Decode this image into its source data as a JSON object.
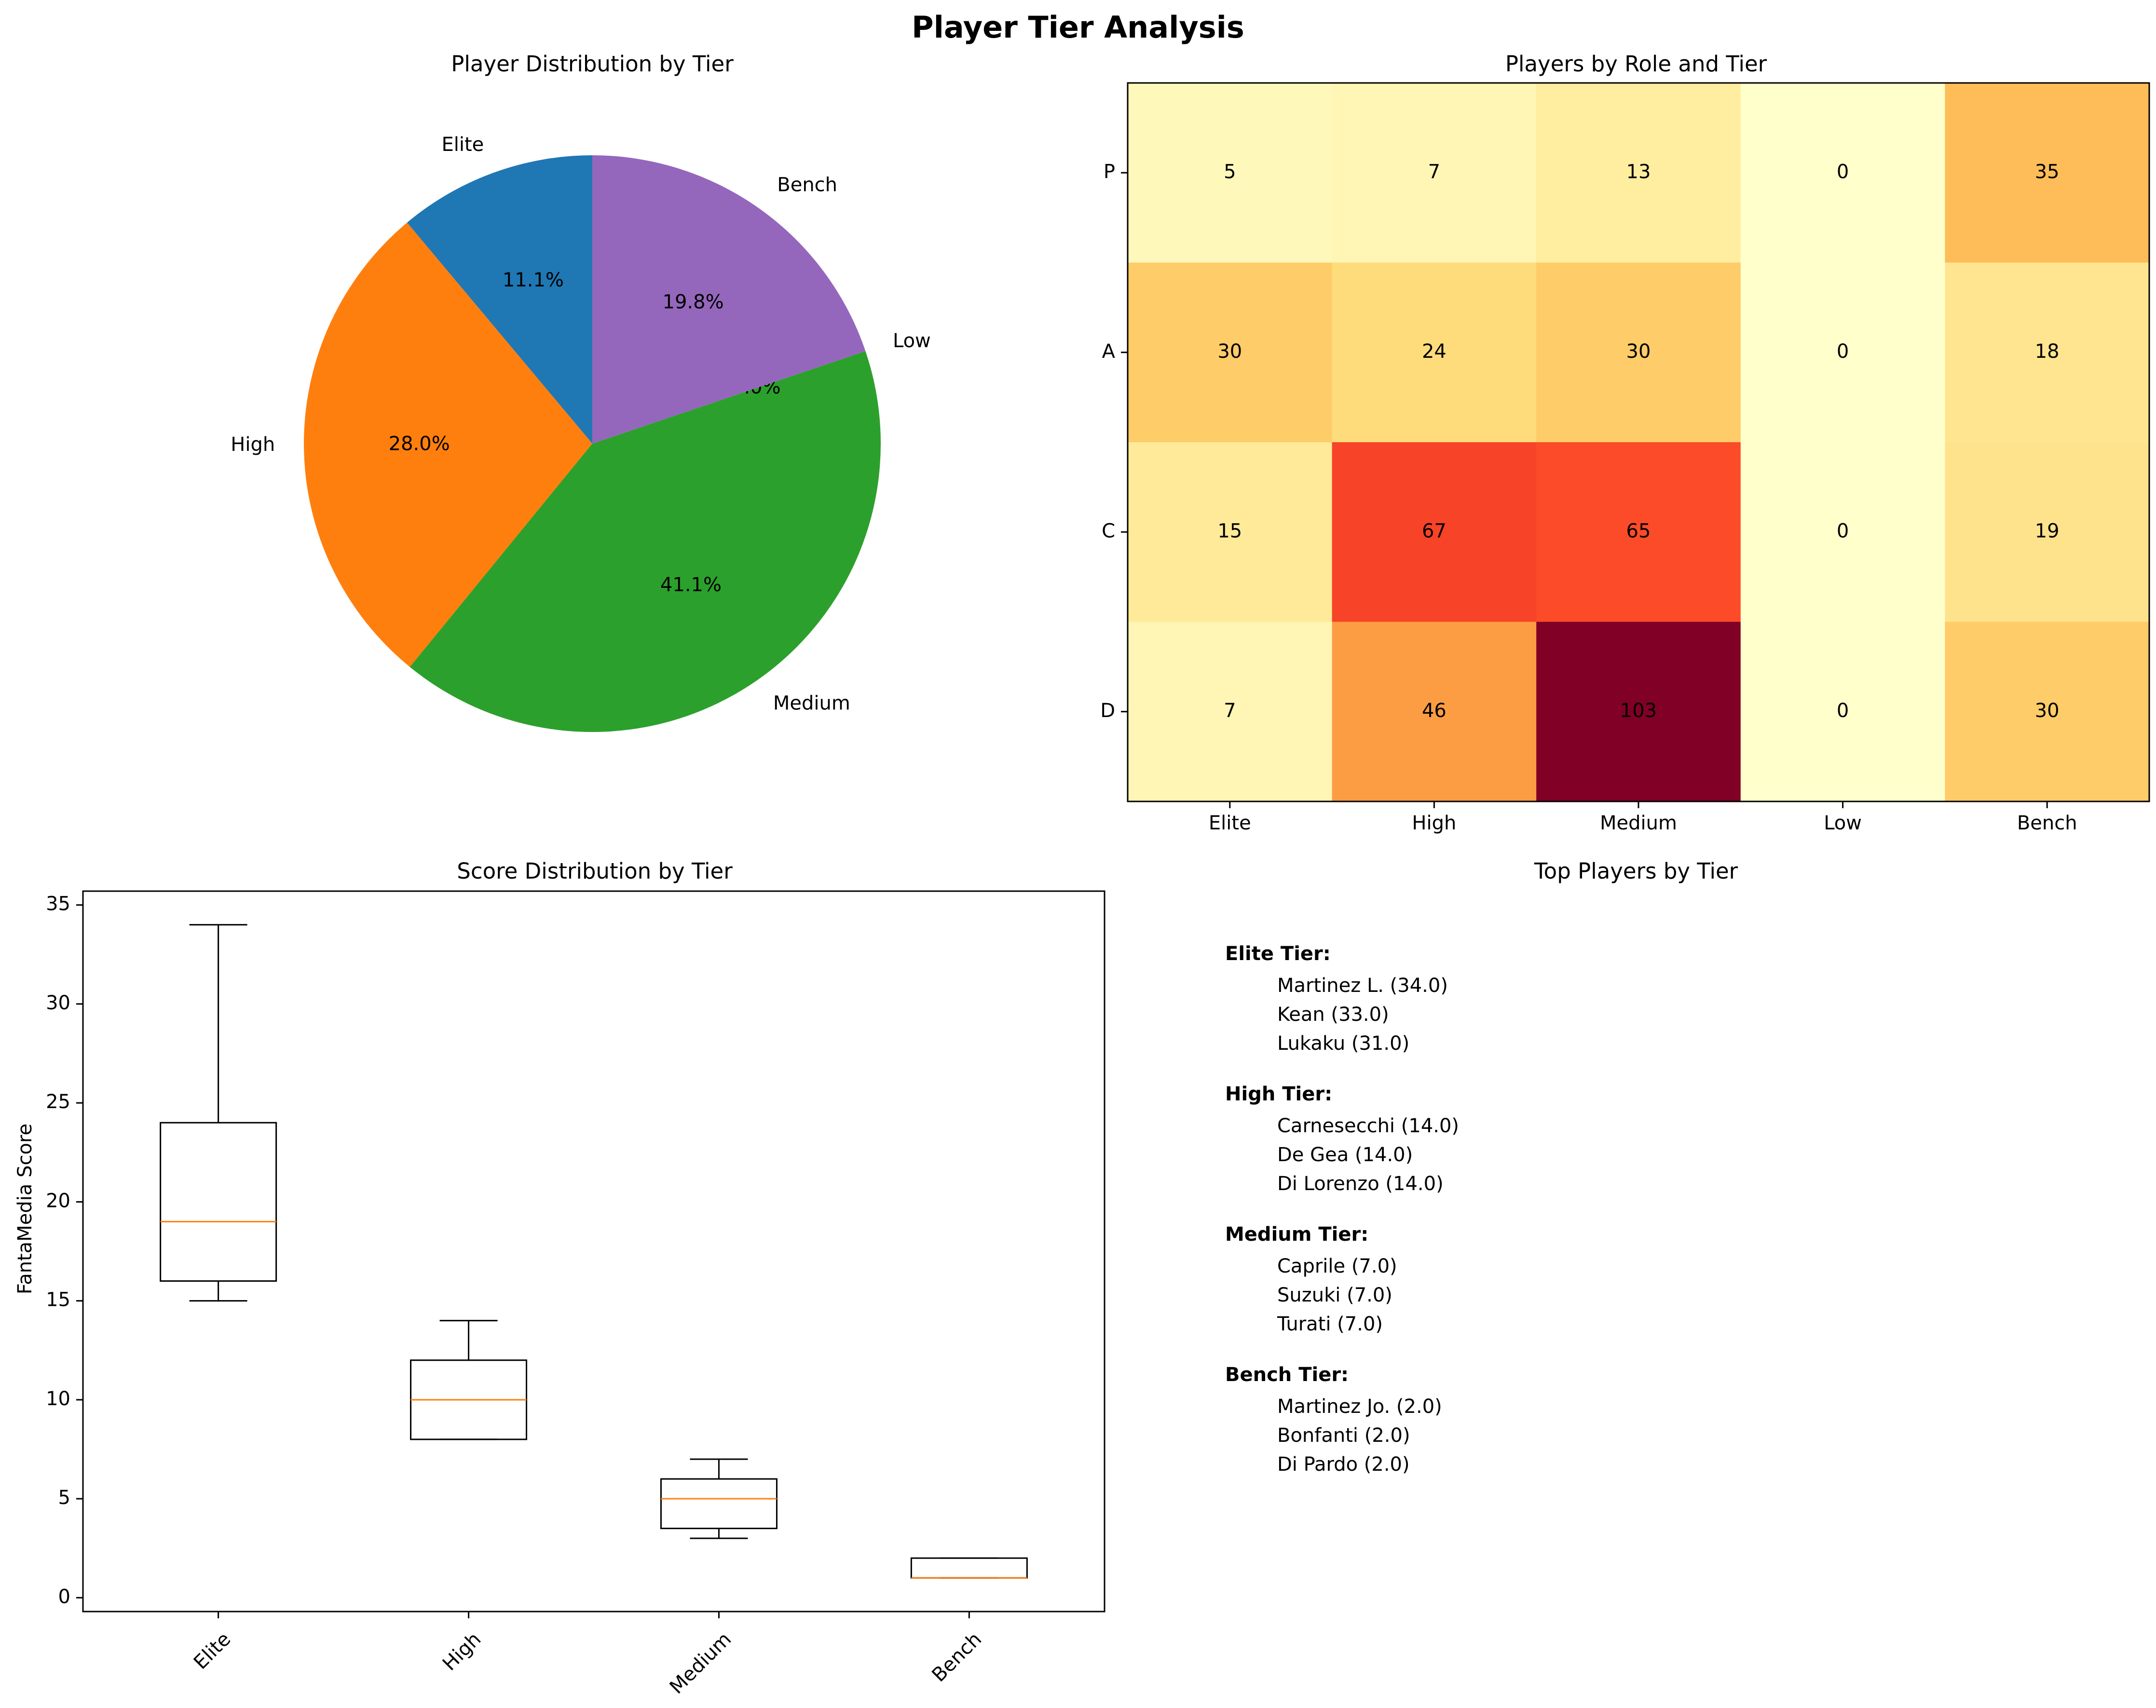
{
  "figure_title": "Player Tier Analysis",
  "chart_data": [
    {
      "type": "pie",
      "title": "Player Distribution by Tier",
      "labels": [
        "Elite",
        "High",
        "Medium",
        "Low",
        "Bench"
      ],
      "values": [
        11.1,
        28.0,
        41.1,
        0.0,
        19.8
      ],
      "pct_labels": [
        "11.1%",
        "28.0%",
        "41.1%",
        "0.0%",
        "19.8%"
      ],
      "colors": [
        "#1f77b4",
        "#ff7f0e",
        "#2ca02c",
        "#d62728",
        "#9467bd"
      ]
    },
    {
      "type": "heatmap",
      "title": "Players by Role and Tier",
      "x_categories": [
        "Elite",
        "High",
        "Medium",
        "Low",
        "Bench"
      ],
      "y_categories": [
        "P",
        "A",
        "C",
        "D"
      ],
      "values": [
        [
          5,
          7,
          13,
          0,
          35
        ],
        [
          30,
          24,
          30,
          0,
          18
        ],
        [
          15,
          67,
          65,
          0,
          19
        ],
        [
          7,
          46,
          103,
          0,
          30
        ]
      ],
      "colormap": "YlOrRd"
    },
    {
      "type": "box",
      "title": "Score Distribution by Tier",
      "ylabel": "FantaMedia Score",
      "categories": [
        "Elite",
        "High",
        "Medium",
        "Bench"
      ],
      "boxes": [
        {
          "whisker_low": 15,
          "q1": 16,
          "median": 19,
          "q3": 24,
          "whisker_high": 34
        },
        {
          "whisker_low": 8,
          "q1": 8,
          "median": 10,
          "q3": 12,
          "whisker_high": 14
        },
        {
          "whisker_low": 3,
          "q1": 3.5,
          "median": 5,
          "q3": 6,
          "whisker_high": 7
        },
        {
          "whisker_low": 1,
          "q1": 1,
          "median": 1,
          "q3": 2,
          "whisker_high": 2
        }
      ],
      "yticks": [
        0,
        5,
        10,
        15,
        20,
        25,
        30,
        35
      ],
      "ylim": [
        -0.7,
        35.7
      ]
    }
  ],
  "top_players": {
    "title": "Top Players by Tier",
    "groups": [
      {
        "heading": "Elite Tier:",
        "players": [
          "Martinez L. (34.0)",
          "Kean (33.0)",
          "Lukaku (31.0)"
        ]
      },
      {
        "heading": "High Tier:",
        "players": [
          "Carnesecchi (14.0)",
          "De Gea (14.0)",
          "Di Lorenzo (14.0)"
        ]
      },
      {
        "heading": "Medium Tier:",
        "players": [
          "Caprile (7.0)",
          "Suzuki (7.0)",
          "Turati (7.0)"
        ]
      },
      {
        "heading": "Bench Tier:",
        "players": [
          "Martinez Jo. (2.0)",
          "Bonfanti (2.0)",
          "Di Pardo (2.0)"
        ]
      }
    ]
  }
}
